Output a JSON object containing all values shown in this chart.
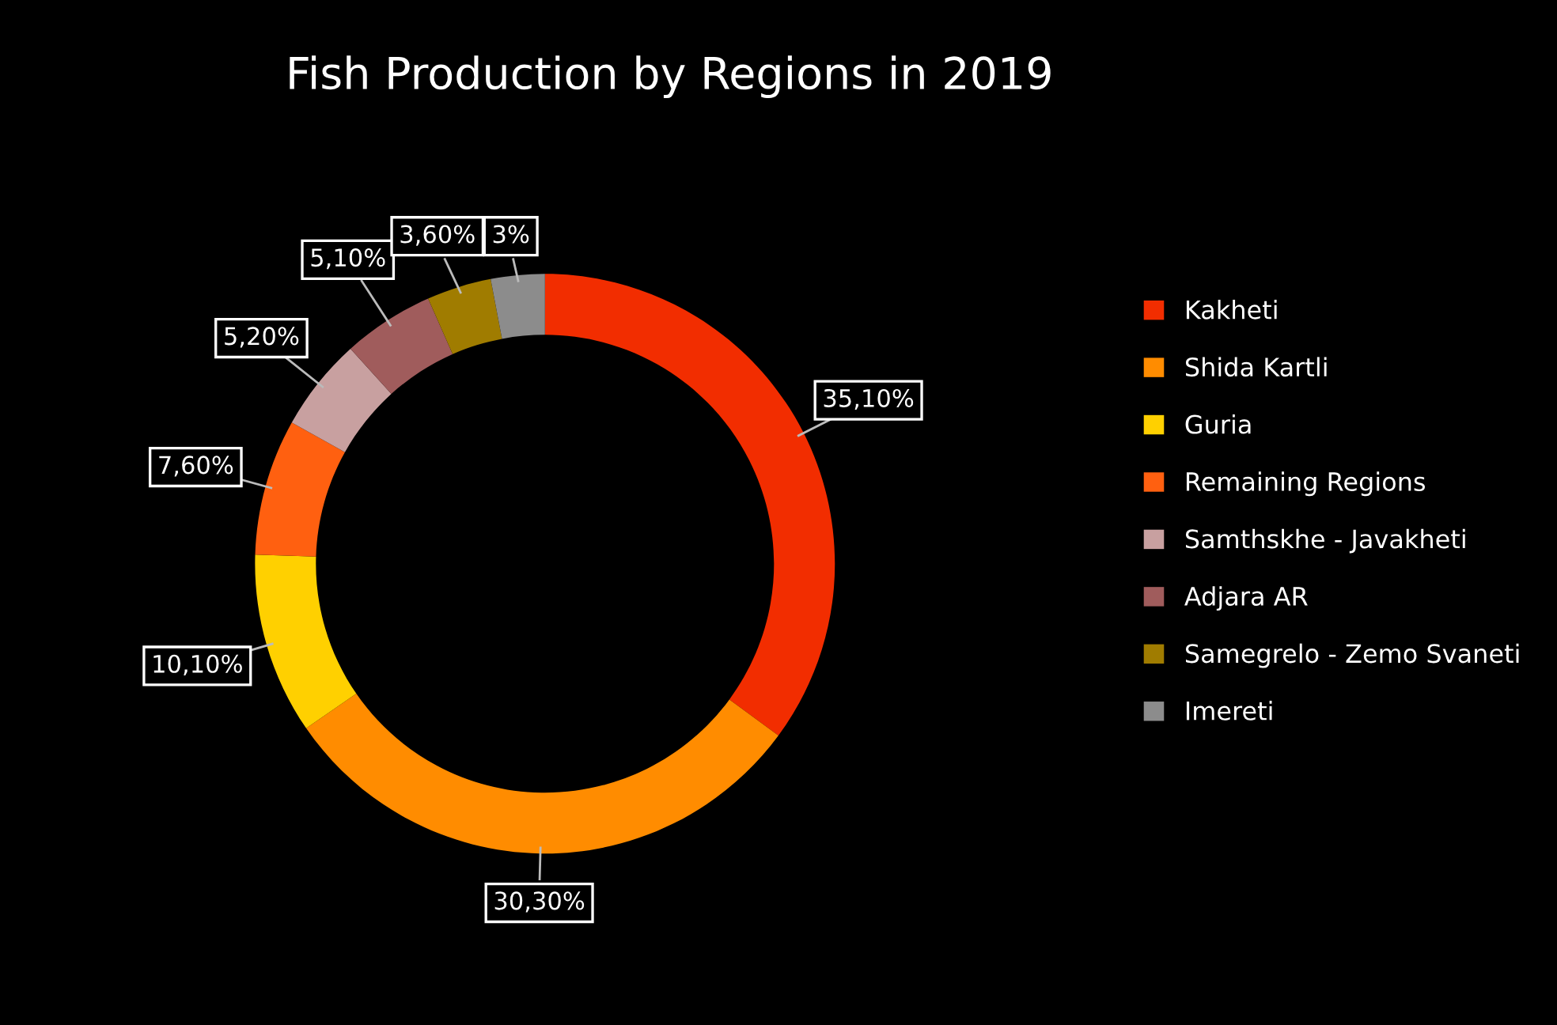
{
  "chart_data": {
    "type": "donut",
    "title": "Fish Production by Regions in 2019",
    "categories": [
      "Kakheti",
      "Shida Kartli",
      "Guria",
      "Remaining Regions",
      "Samthskhe - Javakheti",
      "Adjara AR",
      "Samegrelo - Zemo Svaneti",
      "Imereti"
    ],
    "values": [
      35.1,
      30.3,
      10.1,
      7.6,
      5.2,
      5.1,
      3.6,
      3
    ],
    "value_labels": [
      "35,10%",
      "30,30%",
      "10,10%",
      "7,60%",
      "5,20%",
      "5,10%",
      "3,60%",
      "3%"
    ],
    "colors": [
      "#f22d00",
      "#ff8c00",
      "#ffd000",
      "#ff6010",
      "#c8a0a0",
      "#a05c5c",
      "#a07c00",
      "#8c8c8c"
    ],
    "legend": "right"
  }
}
